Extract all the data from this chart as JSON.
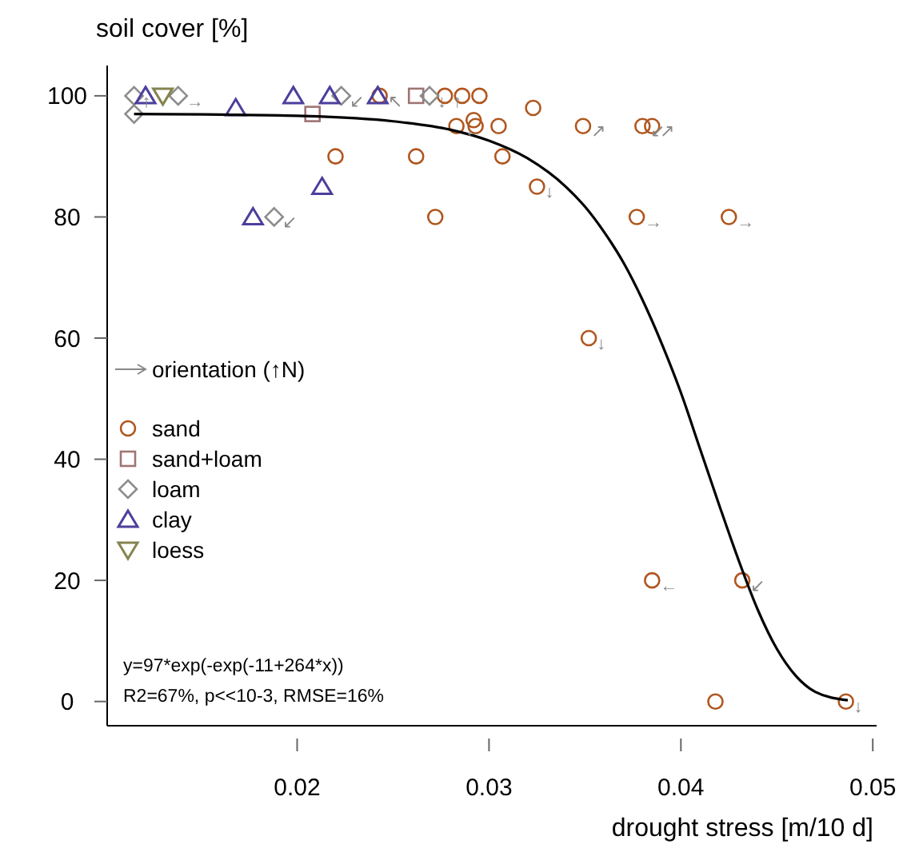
{
  "chart_data": {
    "type": "scatter",
    "xlabel": "drought stress [m/10 d]",
    "ylabel": "soil cover [%]",
    "xlim": [
      0.0101,
      0.0502
    ],
    "xticks": [
      0.02,
      0.03,
      0.04,
      0.05
    ],
    "ylim": [
      -4,
      105
    ],
    "yticks": [
      0,
      20,
      40,
      60,
      80,
      100
    ],
    "grid": false,
    "legend": "left",
    "series": [
      {
        "name": "sand",
        "color": "#b0561e",
        "marker": "circle",
        "x": [
          0.0243,
          0.022,
          0.0277,
          0.0286,
          0.0295,
          0.0323,
          0.0283,
          0.0292,
          0.0293,
          0.0305,
          0.0349,
          0.038,
          0.0385,
          0.0262,
          0.0307,
          0.0325,
          0.0272,
          0.0377,
          0.0425,
          0.0352,
          0.0385,
          0.0432,
          0.0418,
          0.0486
        ],
        "values": [
          100,
          90,
          100,
          100,
          100,
          98,
          95,
          96,
          95,
          95,
          95,
          95,
          95,
          90,
          90,
          85,
          80,
          80,
          80,
          60,
          20,
          20,
          0,
          0
        ]
      },
      {
        "name": "sand+loam",
        "color": "#a07474",
        "marker": "square",
        "x": [
          0.0208,
          0.0262
        ],
        "values": [
          97,
          100
        ]
      },
      {
        "name": "loam",
        "color": "#8c8c8c",
        "marker": "diamond",
        "x": [
          0.0115,
          0.0138,
          0.0115,
          0.0223,
          0.0269,
          0.0188
        ],
        "values": [
          100,
          100,
          97,
          100,
          100,
          80
        ]
      },
      {
        "name": "clay",
        "color": "#4b3f9c",
        "marker": "triangle",
        "x": [
          0.0121,
          0.0168,
          0.0198,
          0.0217,
          0.0242,
          0.0213,
          0.0177
        ],
        "values": [
          100,
          98,
          100,
          100,
          100,
          85,
          80
        ]
      },
      {
        "name": "loess",
        "color": "#85844e",
        "marker": "triangle-down",
        "x": [
          0.013
        ],
        "values": [
          100
        ]
      },
      {
        "type": "line",
        "color": "#000000",
        "marker": "none",
        "x": [
          0.0115,
          0.016,
          0.02,
          0.025,
          0.028,
          0.03,
          0.032,
          0.034,
          0.035,
          0.036,
          0.037,
          0.038,
          0.039,
          0.04,
          0.041,
          0.042,
          0.043,
          0.044,
          0.045,
          0.046,
          0.047,
          0.0487
        ],
        "values": [
          97.0,
          96.9,
          96.7,
          95.8,
          94.4,
          92.6,
          89.7,
          85.0,
          81.7,
          77.5,
          72.5,
          66.3,
          59.1,
          51.0,
          41.7,
          32.4,
          23.4,
          15.2,
          8.7,
          4.2,
          1.6,
          0.2
        ]
      }
    ],
    "annotations": [
      "orientation (↑N)",
      "y=97*exp(-exp(-11+264*x))",
      "R2=67%, p<<10-3, RMSE=16%",
      {
        "text": "↑",
        "x": 0.0115,
        "y": 100
      },
      {
        "text": "→",
        "x": 0.0138,
        "y": 100
      },
      {
        "text": "↙",
        "x": 0.0223,
        "y": 100
      },
      {
        "text": "↖",
        "x": 0.0243,
        "y": 100
      },
      {
        "text": "↓",
        "x": 0.0269,
        "y": 100
      },
      {
        "text": "↑",
        "x": 0.0277,
        "y": 100
      },
      {
        "text": "←",
        "x": 0.0283,
        "y": 95
      },
      {
        "text": "↗",
        "x": 0.0349,
        "y": 95
      },
      {
        "text": "↙",
        "x": 0.038,
        "y": 95
      },
      {
        "text": "↗",
        "x": 0.0385,
        "y": 95
      },
      {
        "text": "↓",
        "x": 0.0325,
        "y": 85
      },
      {
        "text": "→",
        "x": 0.0377,
        "y": 80
      },
      {
        "text": "→",
        "x": 0.0425,
        "y": 80
      },
      {
        "text": "↙",
        "x": 0.0188,
        "y": 80
      },
      {
        "text": "↓",
        "x": 0.0352,
        "y": 60
      },
      {
        "text": "←",
        "x": 0.0385,
        "y": 20
      },
      {
        "text": "↙",
        "x": 0.0432,
        "y": 20
      },
      {
        "text": "↓",
        "x": 0.0486,
        "y": 0
      }
    ]
  }
}
